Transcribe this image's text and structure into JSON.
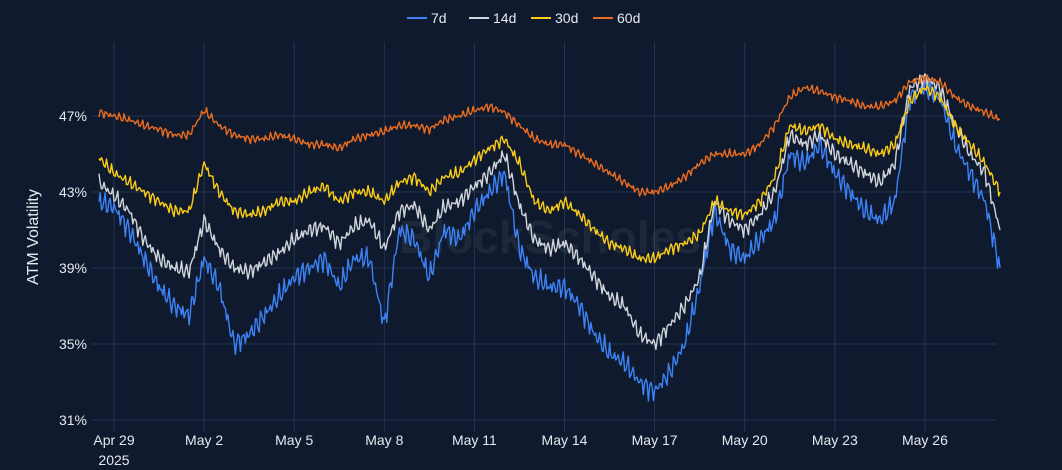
{
  "chart_data": {
    "type": "line",
    "title": "",
    "xlabel": "",
    "ylabel": "ATM Volatility",
    "watermark": "BlockScholes",
    "year_label": "2025",
    "x_start": "2025-04-29",
    "x_end": "2025-05-28T12:00",
    "x_tick_labels": [
      "Apr 29",
      "May 2",
      "May 5",
      "May 8",
      "May 11",
      "May 14",
      "May 17",
      "May 20",
      "May 23",
      "May 26"
    ],
    "y_tick_labels": [
      "31%",
      "35%",
      "39%",
      "43%",
      "47%"
    ],
    "ylim": [
      31,
      50
    ],
    "legend_position": "top-center",
    "grid": true,
    "x": [
      "2025-04-28T12:00",
      "2025-04-29",
      "2025-04-29T12:00",
      "2025-04-30",
      "2025-04-30T12:00",
      "2025-05-01",
      "2025-05-01T12:00",
      "2025-05-02",
      "2025-05-02T12:00",
      "2025-05-03",
      "2025-05-03T12:00",
      "2025-05-04",
      "2025-05-04T12:00",
      "2025-05-05",
      "2025-05-05T12:00",
      "2025-05-06",
      "2025-05-06T12:00",
      "2025-05-07",
      "2025-05-07T12:00",
      "2025-05-08",
      "2025-05-08T12:00",
      "2025-05-09",
      "2025-05-09T12:00",
      "2025-05-10",
      "2025-05-10T12:00",
      "2025-05-11",
      "2025-05-11T12:00",
      "2025-05-12",
      "2025-05-12T12:00",
      "2025-05-13",
      "2025-05-13T12:00",
      "2025-05-14",
      "2025-05-14T12:00",
      "2025-05-15",
      "2025-05-15T12:00",
      "2025-05-16",
      "2025-05-16T12:00",
      "2025-05-17",
      "2025-05-17T12:00",
      "2025-05-18",
      "2025-05-18T12:00",
      "2025-05-19",
      "2025-05-19T12:00",
      "2025-05-20",
      "2025-05-20T12:00",
      "2025-05-21",
      "2025-05-21T12:00",
      "2025-05-22",
      "2025-05-22T12:00",
      "2025-05-23",
      "2025-05-23T12:00",
      "2025-05-24",
      "2025-05-24T12:00",
      "2025-05-25",
      "2025-05-25T12:00",
      "2025-05-26",
      "2025-05-26T12:00",
      "2025-05-27",
      "2025-05-27T12:00",
      "2025-05-28",
      "2025-05-28T12:00"
    ],
    "series": [
      {
        "name": "7d",
        "color": "#3b82f6",
        "values": [
          42.5,
          42.2,
          41.0,
          39.5,
          38.0,
          37.0,
          36.5,
          39.5,
          38.0,
          35.0,
          35.5,
          36.5,
          37.5,
          38.5,
          39.0,
          39.5,
          38.0,
          39.5,
          39.5,
          36.0,
          41.0,
          40.5,
          38.5,
          41.0,
          40.5,
          42.0,
          43.0,
          44.0,
          40.0,
          38.5,
          38.0,
          38.0,
          37.0,
          35.5,
          34.5,
          34.0,
          33.0,
          32.5,
          33.5,
          35.0,
          38.0,
          42.0,
          40.0,
          39.5,
          40.5,
          41.5,
          45.0,
          44.5,
          45.5,
          44.0,
          43.0,
          42.0,
          41.5,
          42.5,
          48.0,
          48.5,
          48.0,
          45.5,
          44.0,
          42.5,
          39.0
        ]
      },
      {
        "name": "14d",
        "color": "#d1d5db",
        "values": [
          43.5,
          42.8,
          42.0,
          40.5,
          39.5,
          39.0,
          38.8,
          41.5,
          40.0,
          39.0,
          38.8,
          39.3,
          39.8,
          40.5,
          41.0,
          41.2,
          40.3,
          41.2,
          41.5,
          40.0,
          42.0,
          42.3,
          41.0,
          42.2,
          42.5,
          43.3,
          44.0,
          45.0,
          42.3,
          40.5,
          40.0,
          40.3,
          39.5,
          38.5,
          37.5,
          37.0,
          35.5,
          35.0,
          36.0,
          37.0,
          38.5,
          42.5,
          41.5,
          41.0,
          41.8,
          43.0,
          46.0,
          45.5,
          46.0,
          45.0,
          44.5,
          44.0,
          43.5,
          44.5,
          48.5,
          49.0,
          48.5,
          46.5,
          45.0,
          44.0,
          41.0
        ]
      },
      {
        "name": "30d",
        "color": "#facc15",
        "values": [
          44.8,
          44.0,
          43.5,
          43.0,
          42.5,
          42.0,
          42.0,
          44.5,
          43.0,
          42.0,
          41.8,
          42.0,
          42.5,
          42.5,
          43.0,
          43.3,
          42.5,
          43.0,
          43.0,
          42.5,
          43.5,
          43.8,
          43.0,
          43.8,
          44.0,
          44.7,
          45.3,
          45.8,
          44.5,
          42.5,
          42.0,
          42.5,
          41.8,
          41.0,
          40.3,
          40.0,
          39.5,
          39.5,
          40.0,
          40.3,
          40.8,
          42.5,
          42.0,
          41.8,
          42.5,
          43.8,
          46.5,
          46.2,
          46.5,
          45.8,
          45.5,
          45.3,
          45.0,
          45.5,
          47.8,
          48.5,
          48.0,
          46.5,
          45.5,
          44.5,
          43.0
        ]
      },
      {
        "name": "60d",
        "color": "#ea6c1e",
        "values": [
          47.2,
          47.0,
          46.8,
          46.5,
          46.3,
          46.0,
          46.0,
          47.3,
          46.5,
          46.0,
          45.8,
          45.8,
          46.0,
          45.8,
          45.5,
          45.5,
          45.3,
          45.8,
          46.0,
          46.2,
          46.5,
          46.5,
          46.3,
          46.8,
          47.0,
          47.3,
          47.5,
          47.2,
          46.5,
          45.8,
          45.5,
          45.5,
          45.0,
          44.5,
          44.0,
          43.5,
          43.0,
          43.0,
          43.3,
          43.8,
          44.5,
          45.0,
          45.0,
          45.0,
          45.5,
          46.5,
          48.0,
          48.5,
          48.3,
          48.0,
          47.8,
          47.5,
          47.5,
          47.8,
          48.8,
          49.0,
          48.8,
          48.0,
          47.5,
          47.2,
          46.8
        ]
      }
    ]
  }
}
